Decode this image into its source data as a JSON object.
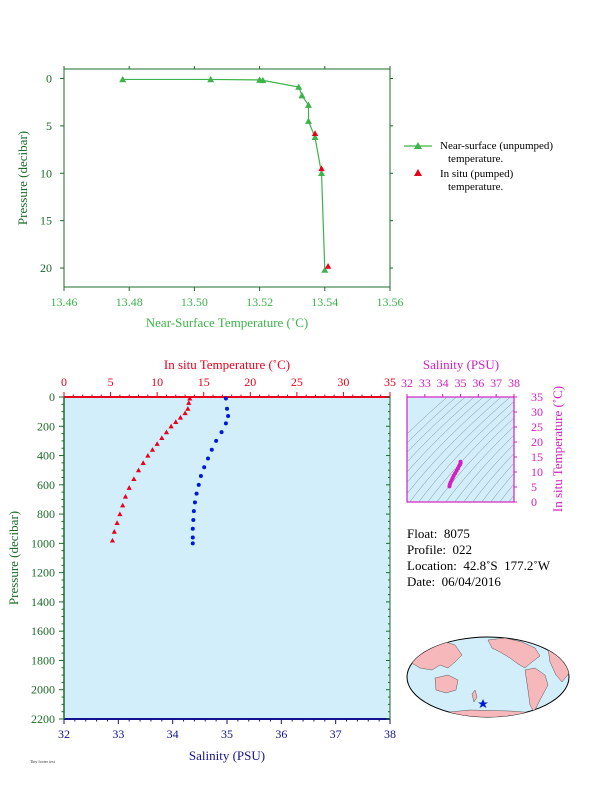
{
  "colors": {
    "green": "#3db34a",
    "red": "#e8001c",
    "blue": "#0018d8",
    "magenta": "#d41fc1",
    "darkgreen": "#1d6b2a",
    "panel_bg": "#d2eefa",
    "salinity_axis": "#13138f"
  },
  "chart_data": [
    {
      "type": "scatter",
      "xlabel": "Near-Surface Temperature (˚C)",
      "ylabel": "Pressure (decibar)",
      "xlim": [
        13.46,
        13.56
      ],
      "ylim": [
        22,
        -1
      ],
      "x_ticks": [
        "13.46",
        "13.48",
        "13.50",
        "13.52",
        "13.54",
        "13.56"
      ],
      "y_ticks": [
        "0",
        "5",
        "10",
        "15",
        "20"
      ],
      "legend_position": "right",
      "series": [
        {
          "name": "Near-surface (unpumped) temperature.",
          "points": [
            [
              13.478,
              0.1
            ],
            [
              13.505,
              0.1
            ],
            [
              13.52,
              0.15
            ],
            [
              13.521,
              0.2
            ],
            [
              13.532,
              0.9
            ],
            [
              13.533,
              1.8
            ],
            [
              13.535,
              2.8
            ],
            [
              13.535,
              4.5
            ],
            [
              13.537,
              6.2
            ],
            [
              13.539,
              10.0
            ],
            [
              13.54,
              20.2
            ]
          ]
        },
        {
          "name": "In situ (pumped) temperature.",
          "points": [
            [
              13.537,
              5.8
            ],
            [
              13.539,
              9.5
            ],
            [
              13.541,
              19.8
            ]
          ]
        }
      ]
    },
    {
      "type": "scatter",
      "ylabel": "Pressure (decibar)",
      "top_axis_label": "In situ Temperature (˚C)",
      "bottom_axis_label": "Salinity (PSU)",
      "temp_range": [
        0,
        35
      ],
      "salinity_range": [
        32,
        38
      ],
      "ylim": [
        2200,
        0
      ],
      "temp_ticks": [
        "0",
        "5",
        "10",
        "15",
        "20",
        "25",
        "30",
        "35"
      ],
      "salinity_ticks": [
        "32",
        "33",
        "34",
        "35",
        "36",
        "37",
        "38"
      ],
      "y_ticks": [
        "0",
        "200",
        "400",
        "600",
        "800",
        "1000",
        "1200",
        "1400",
        "1600",
        "1800",
        "2000",
        "2200"
      ],
      "temperature_profile": [
        [
          13.5,
          10
        ],
        [
          13.4,
          40
        ],
        [
          13.3,
          80
        ],
        [
          13.0,
          110
        ],
        [
          12.5,
          140
        ],
        [
          12.0,
          170
        ],
        [
          11.5,
          200
        ],
        [
          11.0,
          240
        ],
        [
          10.5,
          280
        ],
        [
          10.0,
          320
        ],
        [
          9.5,
          360
        ],
        [
          9.0,
          400
        ],
        [
          8.5,
          450
        ],
        [
          8.0,
          500
        ],
        [
          7.5,
          560
        ],
        [
          7.0,
          620
        ],
        [
          6.6,
          680
        ],
        [
          6.3,
          740
        ],
        [
          6.0,
          800
        ],
        [
          5.7,
          860
        ],
        [
          5.4,
          920
        ],
        [
          5.2,
          980
        ]
      ],
      "salinity_profile": [
        [
          34.98,
          10
        ],
        [
          35.0,
          80
        ],
        [
          35.02,
          130
        ],
        [
          34.98,
          180
        ],
        [
          34.9,
          240
        ],
        [
          34.8,
          300
        ],
        [
          34.72,
          360
        ],
        [
          34.65,
          420
        ],
        [
          34.58,
          480
        ],
        [
          34.52,
          540
        ],
        [
          34.48,
          600
        ],
        [
          34.44,
          660
        ],
        [
          34.41,
          720
        ],
        [
          34.39,
          780
        ],
        [
          34.38,
          840
        ],
        [
          34.37,
          900
        ],
        [
          34.37,
          960
        ],
        [
          34.37,
          1000
        ]
      ]
    },
    {
      "type": "scatter",
      "top_axis_label": "Salinity (PSU)",
      "right_axis_label": "In situ Temperature (˚C)",
      "salinity_ticks": [
        "32",
        "33",
        "34",
        "35",
        "36",
        "37",
        "38"
      ],
      "temp_ticks": [
        "0",
        "5",
        "10",
        "15",
        "20",
        "25",
        "30",
        "35"
      ],
      "salinity_range": [
        32,
        38
      ],
      "temp_range": [
        0,
        35
      ],
      "points": [
        [
          34.38,
          5.2
        ],
        [
          34.4,
          5.8
        ],
        [
          34.44,
          6.5
        ],
        [
          34.5,
          7.2
        ],
        [
          34.56,
          8.0
        ],
        [
          34.62,
          8.8
        ],
        [
          34.7,
          9.6
        ],
        [
          34.78,
          10.4
        ],
        [
          34.86,
          11.2
        ],
        [
          34.92,
          12.0
        ],
        [
          34.98,
          12.6
        ],
        [
          35.01,
          13.1
        ],
        [
          35.0,
          13.4
        ]
      ]
    }
  ],
  "float_info": {
    "float": "Float:  8075",
    "profile": "Profile:  022",
    "location": "Location:  42.8˚S  177.2˚W",
    "date": "Date:  06/04/2016"
  },
  "footer_tiny": "Tiny footer text"
}
